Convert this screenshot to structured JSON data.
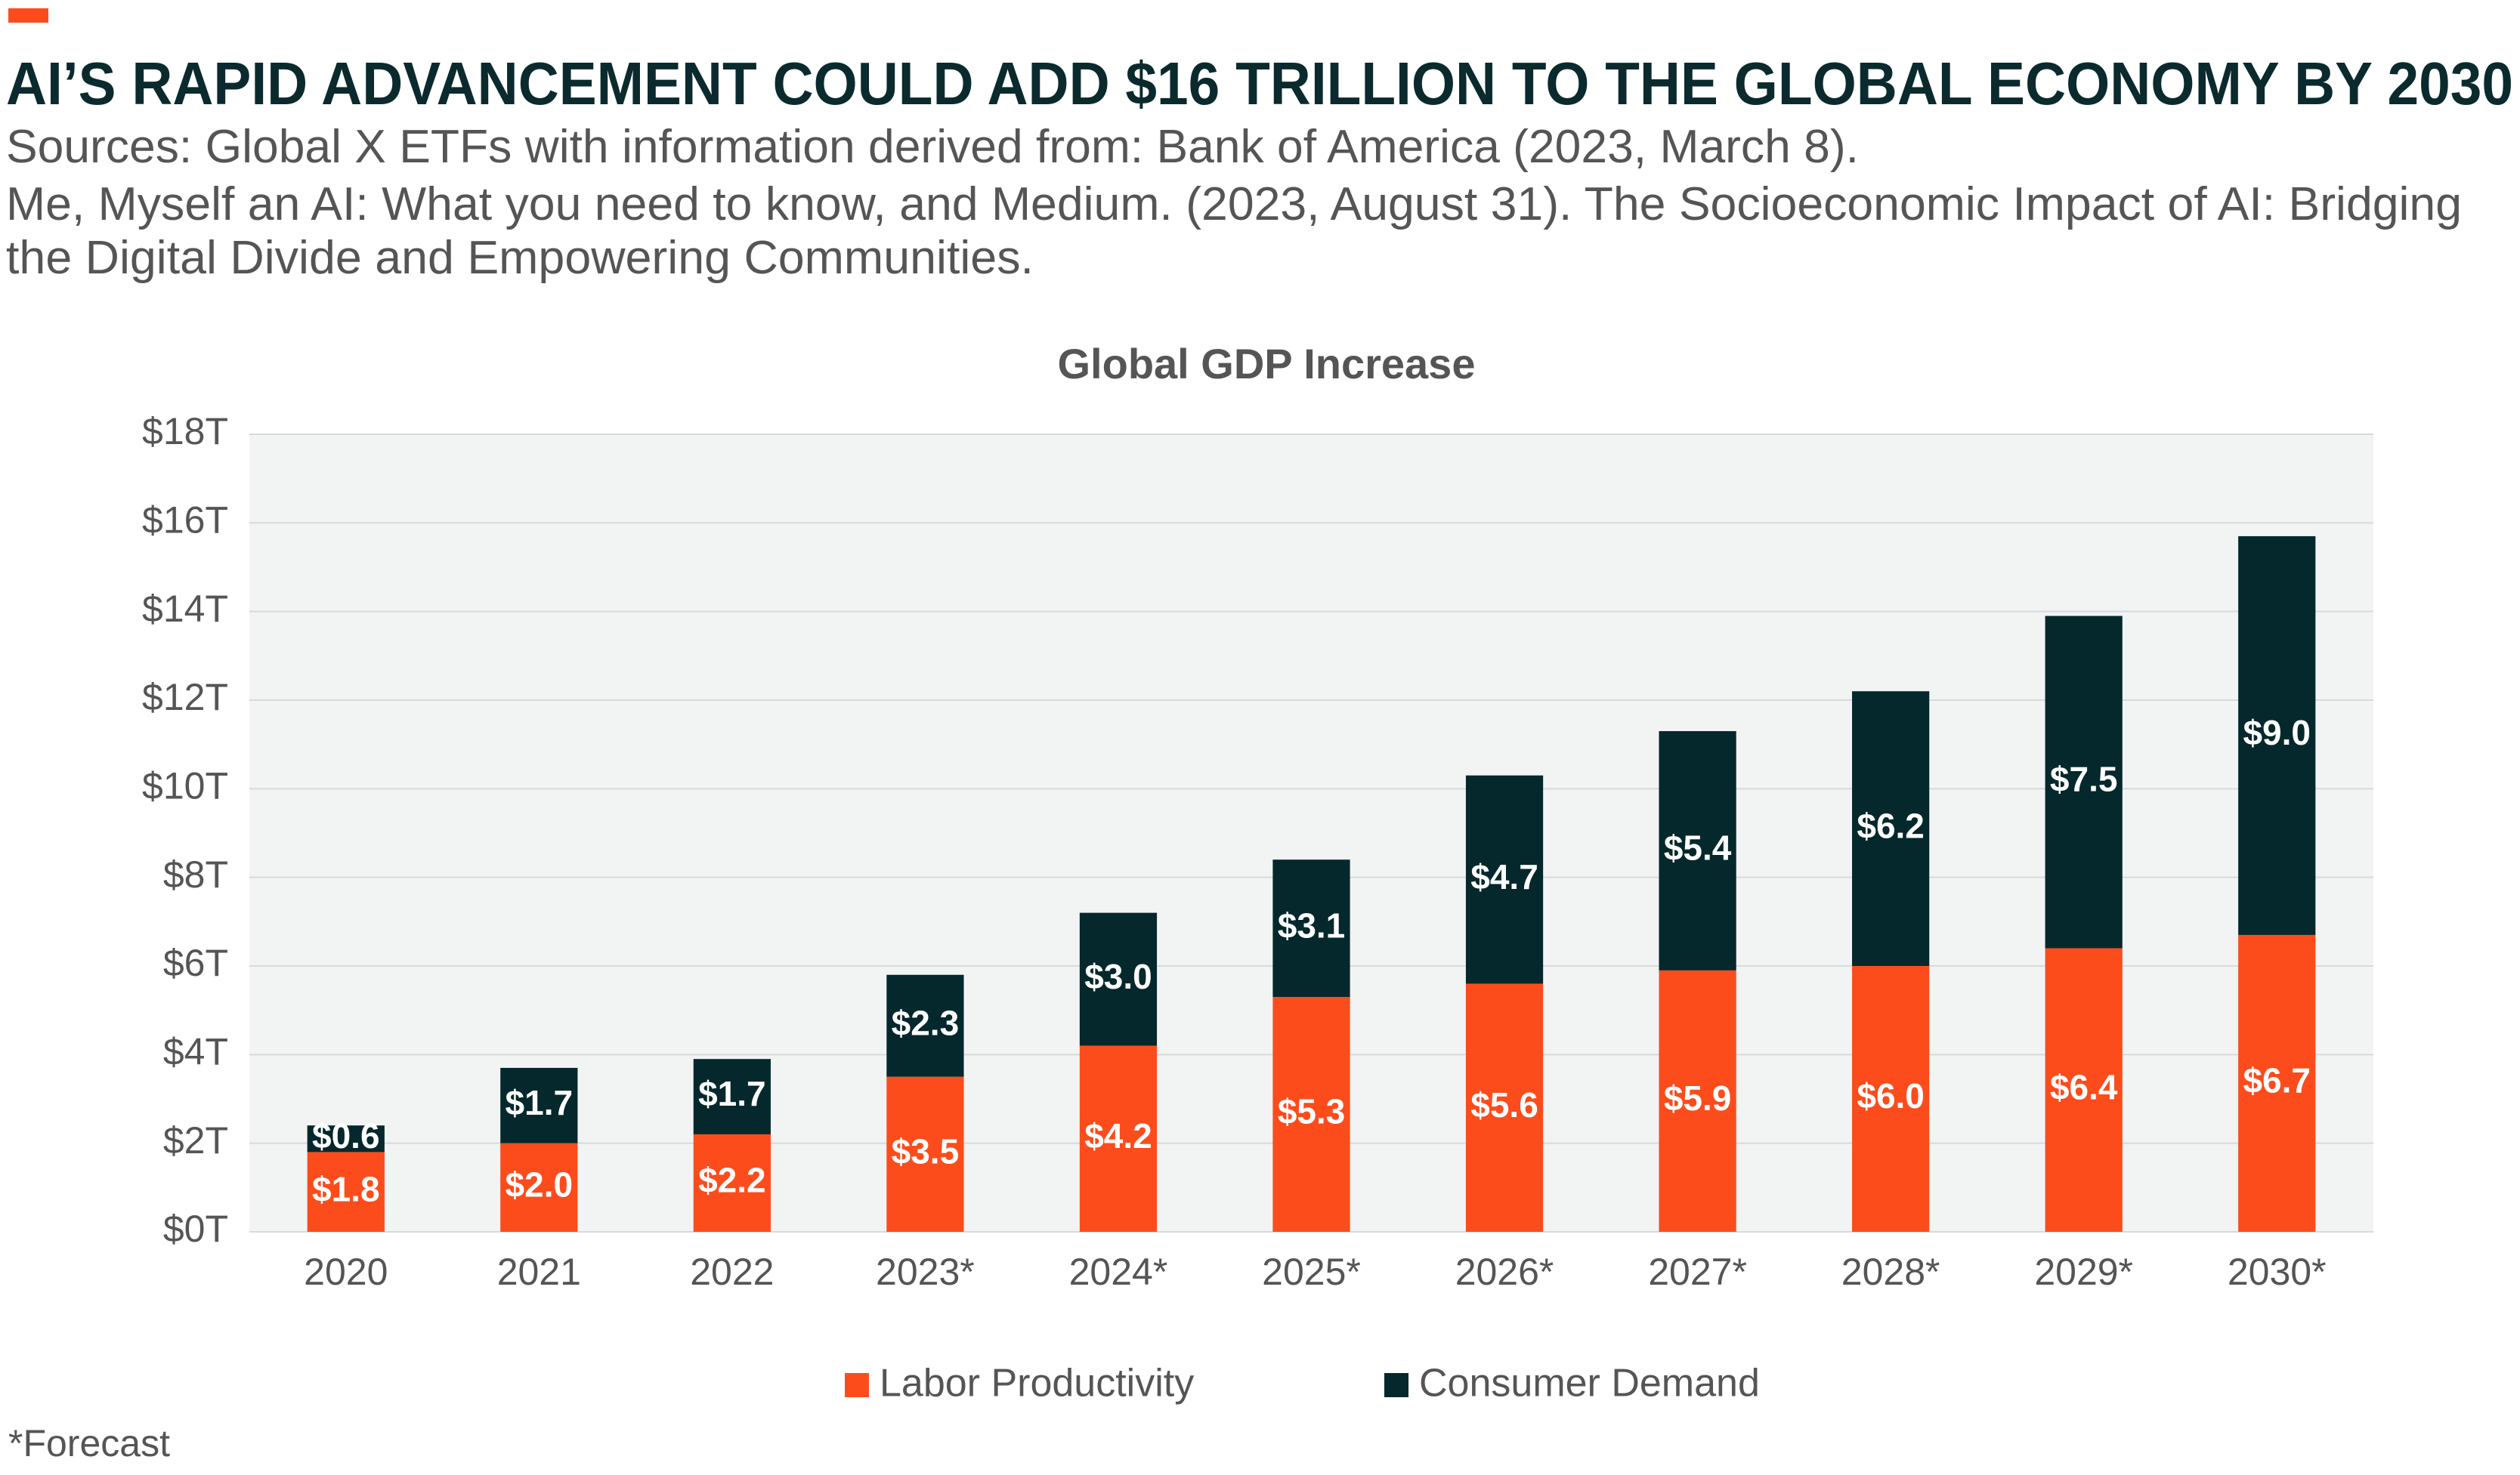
{
  "chart_data": {
    "type": "stacked_bar",
    "title": "AI’S RAPID ADVANCEMENT COULD ADD $16 TRILLION TO THE GLOBAL ECONOMY BY 2030",
    "sources": [
      "Sources: Global X ETFs with information derived from: Bank of America (2023, March 8).",
      "Me, Myself an AI: What you need to know, and Medium. (2023, August 31). The Socioeconomic Impact of AI: Bridging",
      "the Digital Divide and Empowering Communities."
    ],
    "chart_title": "Global GDP Increase",
    "footnote": "*Forecast",
    "categories": [
      "2020",
      "2021",
      "2022",
      "2023*",
      "2024*",
      "2025*",
      "2026*",
      "2027*",
      "2028*",
      "2029*",
      "2030*"
    ],
    "series": [
      {
        "name": "Labor Productivity",
        "color": "#fc4c1c",
        "values": [
          1.8,
          2.0,
          2.2,
          3.5,
          4.2,
          5.3,
          5.6,
          5.9,
          6.0,
          6.4,
          6.7
        ],
        "value_labels": [
          "$1.8",
          "$2.0",
          "$2.2",
          "$3.5",
          "$4.2",
          "$5.3",
          "$5.6",
          "$5.9",
          "$6.0",
          "$6.4",
          "$6.7"
        ]
      },
      {
        "name": "Consumer Demand",
        "color": "#05282c",
        "values": [
          0.6,
          1.7,
          1.7,
          2.3,
          3.0,
          3.1,
          4.7,
          5.4,
          6.2,
          7.5,
          9.0
        ],
        "value_labels": [
          "$0.6",
          "$1.7",
          "$1.7",
          "$2.3",
          "$3.0",
          "$3.1",
          "$4.7",
          "$5.4",
          "$6.2",
          "$7.5",
          "$9.0"
        ]
      }
    ],
    "ylim": [
      0,
      18
    ],
    "yticks": [
      {
        "value": 0,
        "label": "$0T"
      },
      {
        "value": 2,
        "label": "$2T"
      },
      {
        "value": 4,
        "label": "$4T"
      },
      {
        "value": 6,
        "label": "$6T"
      },
      {
        "value": 8,
        "label": "$8T"
      },
      {
        "value": 10,
        "label": "$10T"
      },
      {
        "value": 12,
        "label": "$12T"
      },
      {
        "value": 14,
        "label": "$14T"
      },
      {
        "value": 16,
        "label": "$16T"
      },
      {
        "value": 18,
        "label": "$18T"
      }
    ],
    "grid": true
  }
}
